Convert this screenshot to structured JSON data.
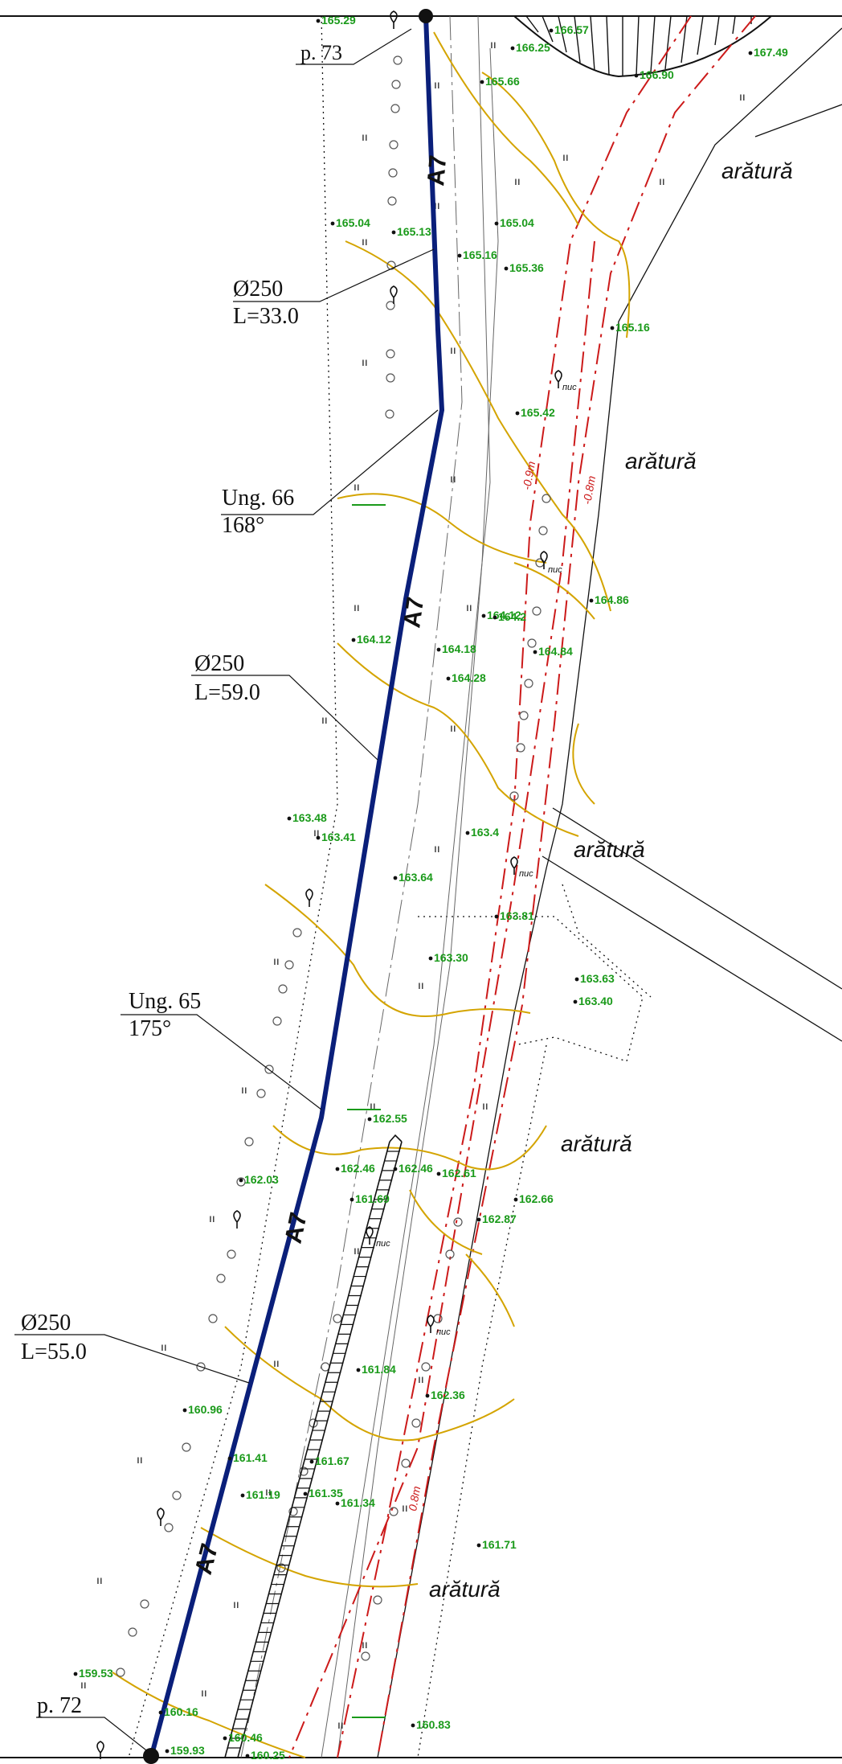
{
  "colors": {
    "pipe": "#0a1f7a",
    "contour": "#d4a400",
    "elevation": "#1a9a1a",
    "border": "#cc1a1a",
    "ink": "#111111"
  },
  "points": {
    "start": "p. 73",
    "end": "p. 72"
  },
  "pipe_label": "A7",
  "segments": [
    {
      "diameter": "Ø250",
      "length": "L=33.0"
    },
    {
      "diameter": "Ø250",
      "length": "L=59.0"
    },
    {
      "diameter": "Ø250",
      "length": "L=55.0"
    }
  ],
  "angles": [
    {
      "name": "Ung. 66",
      "value": "168°"
    },
    {
      "name": "Ung. 65",
      "value": "175°"
    }
  ],
  "land_use": "arătură",
  "tree_tag": "пис",
  "red_notes": [
    "-0.9m",
    "-0.8m",
    "0.8m"
  ],
  "elevations": [
    "165.29",
    "166.57",
    "166.25",
    "167.49",
    "165.66",
    "166.90",
    "165.04",
    "165.13",
    "165.04",
    "165.16",
    "165.36",
    "165.16",
    "165.42",
    "164.86",
    "164.12",
    "164.18",
    "164.28",
    "164.12",
    "164.84",
    "164.2",
    "163.48",
    "163.41",
    "163.4",
    "163.64",
    "163.81",
    "163.30",
    "163.63",
    "163.40",
    "162.55",
    "162.03",
    "162.46",
    "162.46",
    "162.61",
    "162.66",
    "161.69",
    "162.87",
    "160.96",
    "161.84",
    "162.36",
    "161.41",
    "161.67",
    "161.19",
    "161.35",
    "161.34",
    "161.71",
    "159.53",
    "160.16",
    "160.46",
    "160.83",
    "159.93",
    "160.25"
  ]
}
